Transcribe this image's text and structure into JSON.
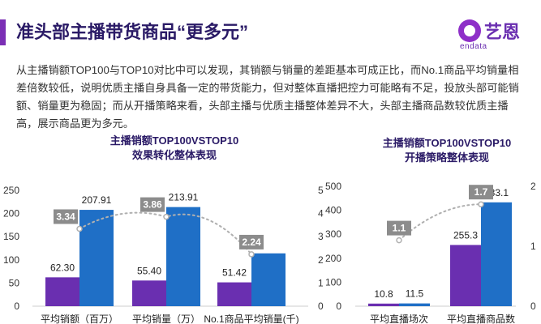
{
  "header": {
    "title": "准头部主播带货商品“更多元”",
    "logo_cn": "艺恩",
    "logo_en": "endata"
  },
  "paragraph": "从主播销额TOP100与TOP10对比中可以发现，其销额与销量的差距基本可成正比，而No.1商品平均销量相差倍数较低，说明优质主播自身具备一定的带货能力，但对整体直播把控力可能略有不足，投放头部可能销额、销量更为稳固；而从开播策略来看，头部主播与优质主播整体差异不大，头部主播商品数较优质主播高，展示商品更为多元。",
  "colors": {
    "purple": "#6a2fb0",
    "blue": "#1f6fc6",
    "badge": "#8c8c8c",
    "line": "#b0b0b0"
  },
  "chart_data": [
    {
      "type": "bar",
      "title": "主播销额TOP100VSTOP10",
      "subtitle": "效果转化整体表现",
      "categories": [
        "平均销额（百万）",
        "平均销量（万）",
        "No.1商品平均销量(千)"
      ],
      "series": [
        {
          "values": [
            62.3,
            55.4,
            51.42
          ],
          "labels": [
            "62.30",
            "55.40",
            "51.42"
          ]
        },
        {
          "values": [
            207.91,
            213.91,
            114
          ],
          "labels": [
            "207.91",
            "213.91",
            ""
          ]
        }
      ],
      "line": {
        "values": [
          3.34,
          3.86,
          2.24
        ],
        "labels": [
          "3.34",
          "3.86",
          "2.24"
        ]
      },
      "y_left_ticks": [
        "0",
        "50",
        "100",
        "150",
        "200",
        "250"
      ],
      "y_right_ticks": [
        "0",
        "1",
        "2",
        "3",
        "4",
        "5"
      ],
      "ylim_left": [
        0,
        250
      ],
      "ylim_right": [
        0,
        5
      ]
    },
    {
      "type": "bar",
      "title": "主播销额TOP100VSTOP10",
      "subtitle": "开播策略整体表现",
      "categories": [
        "平均直播场次",
        "平均直播商品数"
      ],
      "series": [
        {
          "values": [
            10.8,
            255.3
          ],
          "labels": [
            "10.8",
            "255.3"
          ]
        },
        {
          "values": [
            11.5,
            433.1
          ],
          "labels": [
            "11.5",
            "433.1"
          ]
        }
      ],
      "line": {
        "values": [
          1.1,
          1.7
        ],
        "labels": [
          "1.1",
          "1.7"
        ]
      },
      "y_left_ticks": [
        "0",
        "100",
        "200",
        "300",
        "400",
        "500"
      ],
      "y_right_ticks": [
        "0",
        "1",
        "2"
      ],
      "ylim_left": [
        0,
        500
      ],
      "ylim_right": [
        0,
        2
      ]
    }
  ]
}
